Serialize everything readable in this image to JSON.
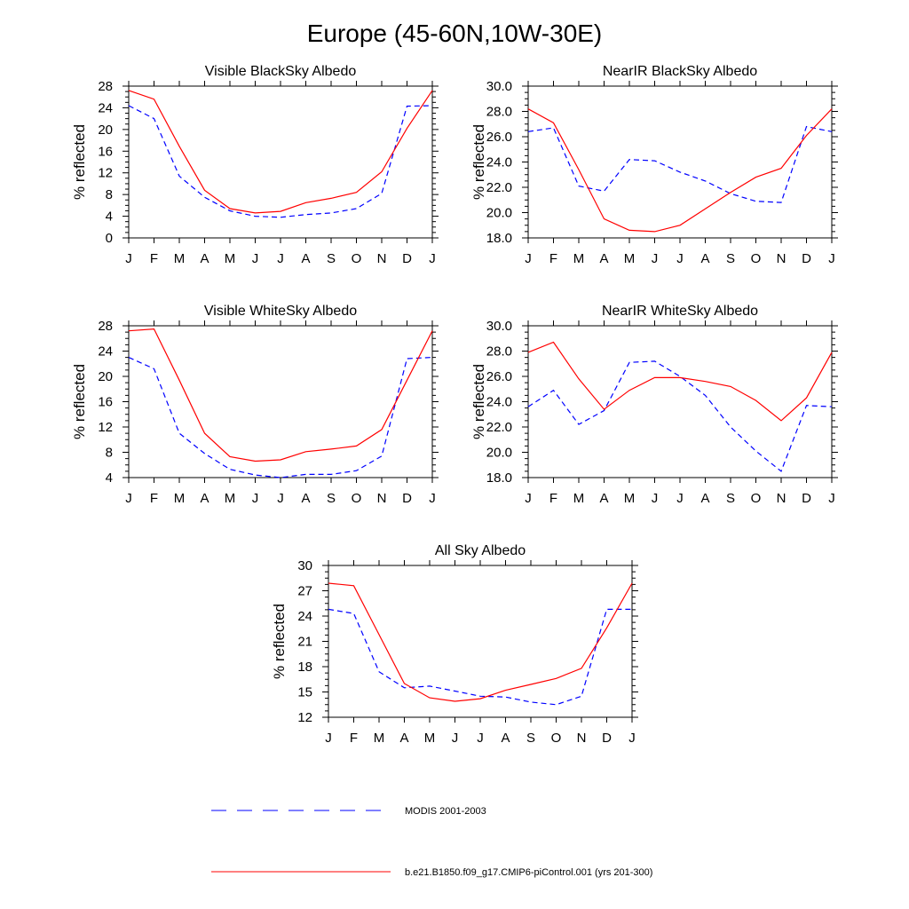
{
  "title": "Europe (45-60N,10W-30E)",
  "colors": {
    "modis": "#0000ff",
    "model": "#ff0000",
    "axis": "#000000"
  },
  "legend": [
    {
      "key": "modis",
      "label": "MODIS 2001-2003",
      "style": "dashed"
    },
    {
      "key": "model",
      "label": "b.e21.B1850.f09_g17.CMIP6-piControl.001 (yrs 201-300)",
      "style": "solid"
    }
  ],
  "chart_data": [
    {
      "type": "line",
      "title": "Visible BlackSky Albedo",
      "ylabel": "% reflected",
      "categories": [
        "J",
        "F",
        "M",
        "A",
        "M",
        "J",
        "J",
        "A",
        "S",
        "O",
        "N",
        "D",
        "J"
      ],
      "ylim": [
        0,
        28
      ],
      "yticks": [
        "0",
        "4",
        "8",
        "12",
        "16",
        "20",
        "24",
        "28"
      ],
      "series": [
        {
          "name": "MODIS 2001-2003",
          "key": "modis",
          "values": [
            24.4,
            22.0,
            11.4,
            7.5,
            5.0,
            4.0,
            3.8,
            4.3,
            4.6,
            5.4,
            8.2,
            24.3,
            24.4
          ]
        },
        {
          "name": "b.e21.B1850.f09_g17.CMIP6-piControl.001 (yrs 201-300)",
          "key": "model",
          "values": [
            27.2,
            25.6,
            16.9,
            8.8,
            5.4,
            4.6,
            4.9,
            6.5,
            7.3,
            8.4,
            12.2,
            20.2,
            27.2
          ]
        }
      ]
    },
    {
      "type": "line",
      "title": "NearIR BlackSky Albedo",
      "ylabel": "% reflected",
      "categories": [
        "J",
        "F",
        "M",
        "A",
        "M",
        "J",
        "J",
        "A",
        "S",
        "O",
        "N",
        "D",
        "J"
      ],
      "ylim": [
        18,
        30
      ],
      "yticks": [
        "18.0",
        "20.0",
        "22.0",
        "24.0",
        "26.0",
        "28.0",
        "30.0"
      ],
      "series": [
        {
          "name": "MODIS 2001-2003",
          "key": "modis",
          "values": [
            26.4,
            26.7,
            22.1,
            21.7,
            24.2,
            24.1,
            23.2,
            22.5,
            21.5,
            20.9,
            20.8,
            26.8,
            26.4
          ]
        },
        {
          "name": "b.e21.B1850.f09_g17.CMIP6-piControl.001 (yrs 201-300)",
          "key": "model",
          "values": [
            28.2,
            27.1,
            23.4,
            19.5,
            18.6,
            18.5,
            19.0,
            20.3,
            21.6,
            22.8,
            23.5,
            26.1,
            28.2
          ]
        }
      ]
    },
    {
      "type": "line",
      "title": "Visible WhiteSky Albedo",
      "ylabel": "% reflected",
      "categories": [
        "J",
        "F",
        "M",
        "A",
        "M",
        "J",
        "J",
        "A",
        "S",
        "O",
        "N",
        "D",
        "J"
      ],
      "ylim": [
        4,
        28
      ],
      "yticks": [
        "4",
        "8",
        "12",
        "16",
        "20",
        "24",
        "28"
      ],
      "series": [
        {
          "name": "MODIS 2001-2003",
          "key": "modis",
          "values": [
            23.0,
            21.2,
            11.0,
            7.8,
            5.3,
            4.4,
            4.0,
            4.5,
            4.5,
            5.1,
            7.4,
            22.8,
            23.0
          ]
        },
        {
          "name": "b.e21.B1850.f09_g17.CMIP6-piControl.001 (yrs 201-300)",
          "key": "model",
          "values": [
            27.2,
            27.5,
            19.4,
            11.0,
            7.3,
            6.6,
            6.8,
            8.1,
            8.5,
            9.0,
            11.6,
            19.4,
            27.2
          ]
        }
      ]
    },
    {
      "type": "line",
      "title": "NearIR WhiteSky Albedo",
      "ylabel": "% reflected",
      "categories": [
        "J",
        "F",
        "M",
        "A",
        "M",
        "J",
        "J",
        "A",
        "S",
        "O",
        "N",
        "D",
        "J"
      ],
      "ylim": [
        18,
        30
      ],
      "yticks": [
        "18.0",
        "20.0",
        "22.0",
        "24.0",
        "26.0",
        "28.0",
        "30.0"
      ],
      "series": [
        {
          "name": "MODIS 2001-2003",
          "key": "modis",
          "values": [
            23.6,
            24.9,
            22.2,
            23.3,
            27.1,
            27.2,
            26.0,
            24.5,
            22.0,
            20.1,
            18.5,
            23.7,
            23.6
          ]
        },
        {
          "name": "b.e21.B1850.f09_g17.CMIP6-piControl.001 (yrs 201-300)",
          "key": "model",
          "values": [
            27.9,
            28.7,
            25.8,
            23.4,
            24.9,
            25.9,
            25.9,
            25.6,
            25.2,
            24.1,
            22.5,
            24.3,
            27.9
          ]
        }
      ]
    },
    {
      "type": "line",
      "title": "All Sky Albedo",
      "ylabel": "% reflected",
      "categories": [
        "J",
        "F",
        "M",
        "A",
        "M",
        "J",
        "J",
        "A",
        "S",
        "O",
        "N",
        "D",
        "J"
      ],
      "ylim": [
        12,
        30
      ],
      "yticks": [
        "12",
        "15",
        "18",
        "21",
        "24",
        "27",
        "30"
      ],
      "series": [
        {
          "name": "MODIS 2001-2003",
          "key": "modis",
          "values": [
            24.8,
            24.3,
            17.4,
            15.5,
            15.7,
            15.1,
            14.5,
            14.4,
            13.8,
            13.5,
            14.5,
            24.8,
            24.8
          ]
        },
        {
          "name": "b.e21.B1850.f09_g17.CMIP6-piControl.001 (yrs 201-300)",
          "key": "model",
          "values": [
            27.9,
            27.6,
            21.8,
            16.0,
            14.3,
            13.9,
            14.2,
            15.2,
            15.9,
            16.6,
            17.8,
            22.6,
            27.9
          ]
        }
      ]
    }
  ]
}
